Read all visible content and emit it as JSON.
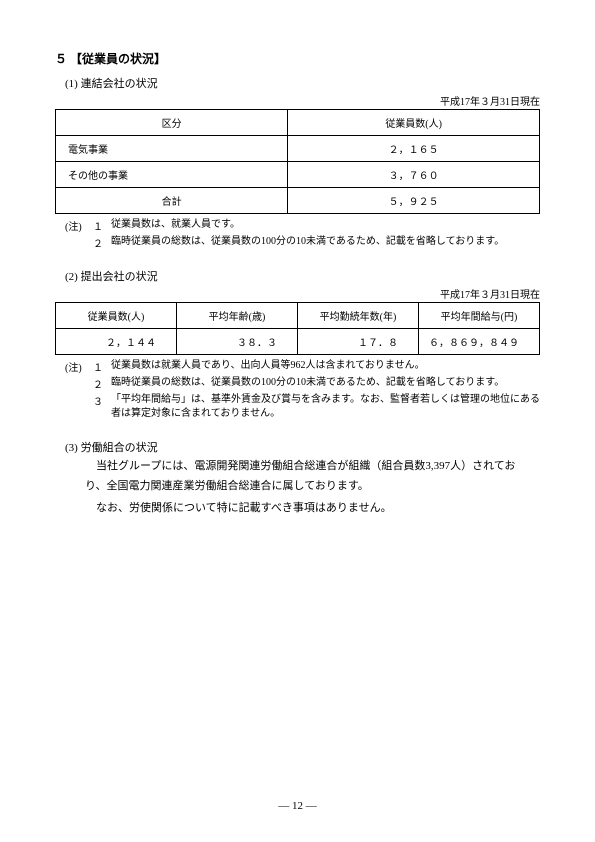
{
  "section_number": "５",
  "section_title": "【従業員の状況】",
  "sub1": {
    "title": "(1) 連結会社の状況",
    "date_note": "平成17年３月31日現在",
    "headers": [
      "区分",
      "従業員数(人)"
    ],
    "rows": [
      {
        "label": "電気事業",
        "value": "２，１６５"
      },
      {
        "label": "その他の事業",
        "value": "３，７６０"
      }
    ],
    "total": {
      "label": "合計",
      "value": "５，９２５"
    },
    "notes_label": "(注)",
    "notes": [
      {
        "num": "１",
        "text": "従業員数は、就業人員です。"
      },
      {
        "num": "２",
        "text": "臨時従業員の総数は、従業員数の100分の10未満であるため、記載を省略しております。"
      }
    ]
  },
  "sub2": {
    "title": "(2) 提出会社の状況",
    "date_note": "平成17年３月31日現在",
    "headers": [
      "従業員数(人)",
      "平均年齢(歳)",
      "平均勤続年数(年)",
      "平均年間給与(円)"
    ],
    "row": [
      "２，１４４",
      "３８．３",
      "１７．８",
      "６，８６９，８４９"
    ],
    "notes_label": "(注)",
    "notes": [
      {
        "num": "１",
        "text": "従業員数は就業人員であり、出向人員等962人は含まれておりません。"
      },
      {
        "num": "２",
        "text": "臨時従業員の総数は、従業員数の100分の10未満であるため、記載を省略しております。"
      },
      {
        "num": "３",
        "text": "「平均年間給与」は、基準外賃金及び賞与を含みます。なお、監督者若しくは管理の地位にある者は算定対象に含まれておりません。"
      }
    ]
  },
  "sub3": {
    "title": "(3) 労働組合の状況",
    "paragraphs": [
      "当社グループには、電源開発関連労働組合総連合が組織（組合員数3,397人）されており、全国電力関連産業労働組合総連合に属しております。",
      "なお、労使関係について特に記載すべき事項はありません。"
    ]
  },
  "page_number": "― 12 ―"
}
